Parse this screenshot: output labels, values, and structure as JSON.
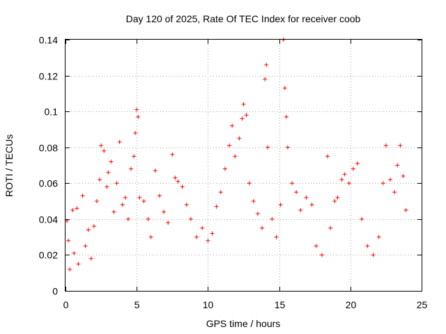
{
  "chart_data": {
    "type": "scatter",
    "title": "Day 120 of 2025, Rate Of TEC Index for receiver coob",
    "xlabel": "GPS time / hours",
    "ylabel": "ROTI / TECUs",
    "xlim": [
      0,
      25
    ],
    "ylim": [
      0,
      0.14
    ],
    "xticks": [
      0,
      5,
      10,
      15,
      20,
      25
    ],
    "xtick_labels": [
      "0",
      "5",
      "10",
      "15",
      "20",
      "25"
    ],
    "yticks": [
      0,
      0.02,
      0.04,
      0.06,
      0.08,
      0.1,
      0.12,
      0.14
    ],
    "ytick_labels": [
      "0",
      "0.02",
      "0.04",
      "0.06",
      "0.08",
      "0.1",
      "0.12",
      "0.14"
    ],
    "grid": true,
    "marker": "+",
    "color": "#ff0000",
    "series": [
      {
        "name": "ROTI",
        "points": [
          [
            0.1,
            0.039
          ],
          [
            0.2,
            0.028
          ],
          [
            0.3,
            0.012
          ],
          [
            0.5,
            0.045
          ],
          [
            0.6,
            0.021
          ],
          [
            0.8,
            0.046
          ],
          [
            0.9,
            0.015
          ],
          [
            1.2,
            0.053
          ],
          [
            1.4,
            0.025
          ],
          [
            1.6,
            0.034
          ],
          [
            1.8,
            0.018
          ],
          [
            2.0,
            0.036
          ],
          [
            2.2,
            0.05
          ],
          [
            2.4,
            0.062
          ],
          [
            2.5,
            0.081
          ],
          [
            2.7,
            0.078
          ],
          [
            2.9,
            0.058
          ],
          [
            3.0,
            0.066
          ],
          [
            3.2,
            0.072
          ],
          [
            3.4,
            0.044
          ],
          [
            3.6,
            0.06
          ],
          [
            3.8,
            0.083
          ],
          [
            4.0,
            0.048
          ],
          [
            4.2,
            0.052
          ],
          [
            4.4,
            0.04
          ],
          [
            4.6,
            0.068
          ],
          [
            4.8,
            0.075
          ],
          [
            4.9,
            0.088
          ],
          [
            5.0,
            0.101
          ],
          [
            5.1,
            0.097
          ],
          [
            5.2,
            0.052
          ],
          [
            5.5,
            0.05
          ],
          [
            5.8,
            0.04
          ],
          [
            6.0,
            0.03
          ],
          [
            6.3,
            0.067
          ],
          [
            6.6,
            0.053
          ],
          [
            6.9,
            0.044
          ],
          [
            7.2,
            0.038
          ],
          [
            7.5,
            0.076
          ],
          [
            7.7,
            0.063
          ],
          [
            7.9,
            0.061
          ],
          [
            8.2,
            0.058
          ],
          [
            8.5,
            0.048
          ],
          [
            8.8,
            0.04
          ],
          [
            9.2,
            0.03
          ],
          [
            9.6,
            0.035
          ],
          [
            10.0,
            0.028
          ],
          [
            10.3,
            0.032
          ],
          [
            10.6,
            0.047
          ],
          [
            10.9,
            0.055
          ],
          [
            11.2,
            0.068
          ],
          [
            11.5,
            0.081
          ],
          [
            11.7,
            0.092
          ],
          [
            11.9,
            0.075
          ],
          [
            12.2,
            0.085
          ],
          [
            12.4,
            0.096
          ],
          [
            12.5,
            0.104
          ],
          [
            12.7,
            0.098
          ],
          [
            12.9,
            0.06
          ],
          [
            13.2,
            0.05
          ],
          [
            13.5,
            0.043
          ],
          [
            13.8,
            0.035
          ],
          [
            14.0,
            0.118
          ],
          [
            14.1,
            0.126
          ],
          [
            14.2,
            0.08
          ],
          [
            14.5,
            0.04
          ],
          [
            14.8,
            0.03
          ],
          [
            15.1,
            0.048
          ],
          [
            15.3,
            0.14
          ],
          [
            15.4,
            0.113
          ],
          [
            15.5,
            0.097
          ],
          [
            15.6,
            0.08
          ],
          [
            15.9,
            0.06
          ],
          [
            16.2,
            0.055
          ],
          [
            16.5,
            0.045
          ],
          [
            16.9,
            0.052
          ],
          [
            17.3,
            0.048
          ],
          [
            17.6,
            0.025
          ],
          [
            18.0,
            0.02
          ],
          [
            18.4,
            0.075
          ],
          [
            18.6,
            0.035
          ],
          [
            18.9,
            0.05
          ],
          [
            19.1,
            0.052
          ],
          [
            19.4,
            0.062
          ],
          [
            19.6,
            0.065
          ],
          [
            19.9,
            0.06
          ],
          [
            20.2,
            0.068
          ],
          [
            20.5,
            0.071
          ],
          [
            20.8,
            0.04
          ],
          [
            21.2,
            0.025
          ],
          [
            21.6,
            0.02
          ],
          [
            22.0,
            0.03
          ],
          [
            22.3,
            0.06
          ],
          [
            22.5,
            0.081
          ],
          [
            22.8,
            0.062
          ],
          [
            23.1,
            0.055
          ],
          [
            23.3,
            0.07
          ],
          [
            23.5,
            0.081
          ],
          [
            23.7,
            0.064
          ],
          [
            23.9,
            0.045
          ]
        ]
      }
    ]
  }
}
